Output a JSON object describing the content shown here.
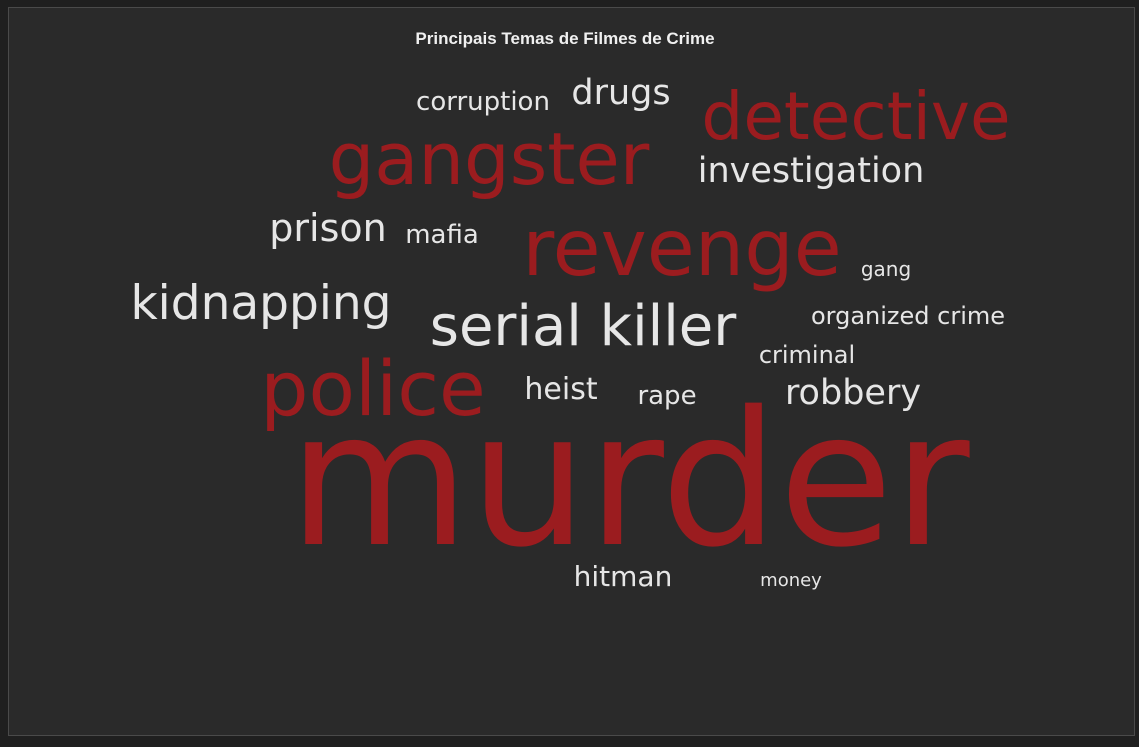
{
  "chart_data": {
    "type": "wordcloud",
    "title": "Principais Temas de Filmes de Crime",
    "colors": {
      "background": "#2a2a2a",
      "highlight": "#9b1c1f",
      "normal": "#e6e6e6",
      "title": "#f0f0f0"
    },
    "words": [
      {
        "text": "murder",
        "weight": 100,
        "highlight": true
      },
      {
        "text": "revenge",
        "weight": 72,
        "highlight": true
      },
      {
        "text": "gangster",
        "weight": 70,
        "highlight": true
      },
      {
        "text": "police",
        "weight": 68,
        "highlight": true
      },
      {
        "text": "detective",
        "weight": 66,
        "highlight": true
      },
      {
        "text": "serial killer",
        "weight": 54,
        "highlight": false
      },
      {
        "text": "kidnapping",
        "weight": 48,
        "highlight": false
      },
      {
        "text": "prison",
        "weight": 40,
        "highlight": false
      },
      {
        "text": "investigation",
        "weight": 38,
        "highlight": false
      },
      {
        "text": "drugs",
        "weight": 36,
        "highlight": false
      },
      {
        "text": "robbery",
        "weight": 36,
        "highlight": false
      },
      {
        "text": "heist",
        "weight": 32,
        "highlight": false
      },
      {
        "text": "hitman",
        "weight": 30,
        "highlight": false
      },
      {
        "text": "corruption",
        "weight": 28,
        "highlight": false
      },
      {
        "text": "mafia",
        "weight": 26,
        "highlight": false
      },
      {
        "text": "rape",
        "weight": 26,
        "highlight": false
      },
      {
        "text": "organized crime",
        "weight": 26,
        "highlight": false
      },
      {
        "text": "criminal",
        "weight": 25,
        "highlight": false
      },
      {
        "text": "gang",
        "weight": 22,
        "highlight": false
      },
      {
        "text": "money",
        "weight": 20,
        "highlight": false
      }
    ]
  }
}
